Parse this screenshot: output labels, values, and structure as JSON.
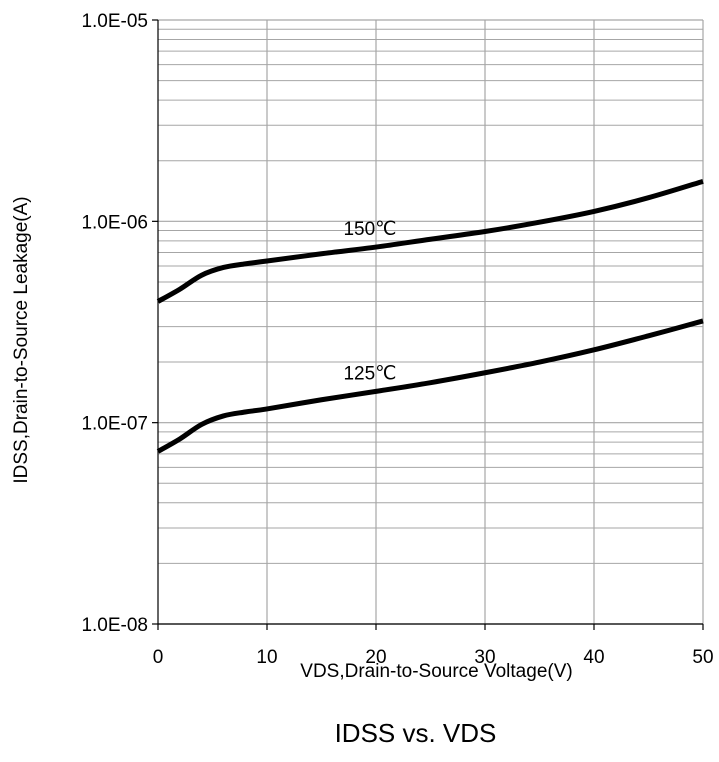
{
  "chart_data": {
    "type": "line",
    "title": "IDSS vs.  VDS",
    "xlabel": "VDS,Drain-to-Source Voltage(V)",
    "ylabel": "IDSS,Drain-to-Source Leakage(A)",
    "xlim": [
      0,
      50
    ],
    "ylim": [
      1e-08,
      1e-05
    ],
    "yscale": "log",
    "grid": true,
    "x_ticks": [
      "0",
      "10",
      "20",
      "30",
      "40",
      "50"
    ],
    "y_ticks": [
      "1.0E-08",
      "1.0E-07",
      "1.0E-06",
      "1.0E-05"
    ],
    "series": [
      {
        "name": "150℃",
        "x": [
          0,
          2,
          4,
          6,
          8,
          10,
          15,
          20,
          25,
          30,
          35,
          40,
          45,
          50
        ],
        "y": [
          4e-07,
          4.6e-07,
          5.4e-07,
          5.9e-07,
          6.15e-07,
          6.35e-07,
          6.9e-07,
          7.45e-07,
          8.15e-07,
          8.9e-07,
          9.9e-07,
          1.12e-06,
          1.31e-06,
          1.58e-06
        ]
      },
      {
        "name": "125℃",
        "x": [
          0,
          2,
          4,
          6,
          8,
          10,
          15,
          20,
          25,
          30,
          35,
          40,
          45,
          50
        ],
        "y": [
          7.2e-08,
          8.3e-08,
          9.8e-08,
          1.08e-07,
          1.13e-07,
          1.17e-07,
          1.3e-07,
          1.43e-07,
          1.58e-07,
          1.77e-07,
          2e-07,
          2.3e-07,
          2.7e-07,
          3.2e-07
        ]
      }
    ],
    "line_color": "#000000",
    "grid_color": "#a6a6a6"
  }
}
